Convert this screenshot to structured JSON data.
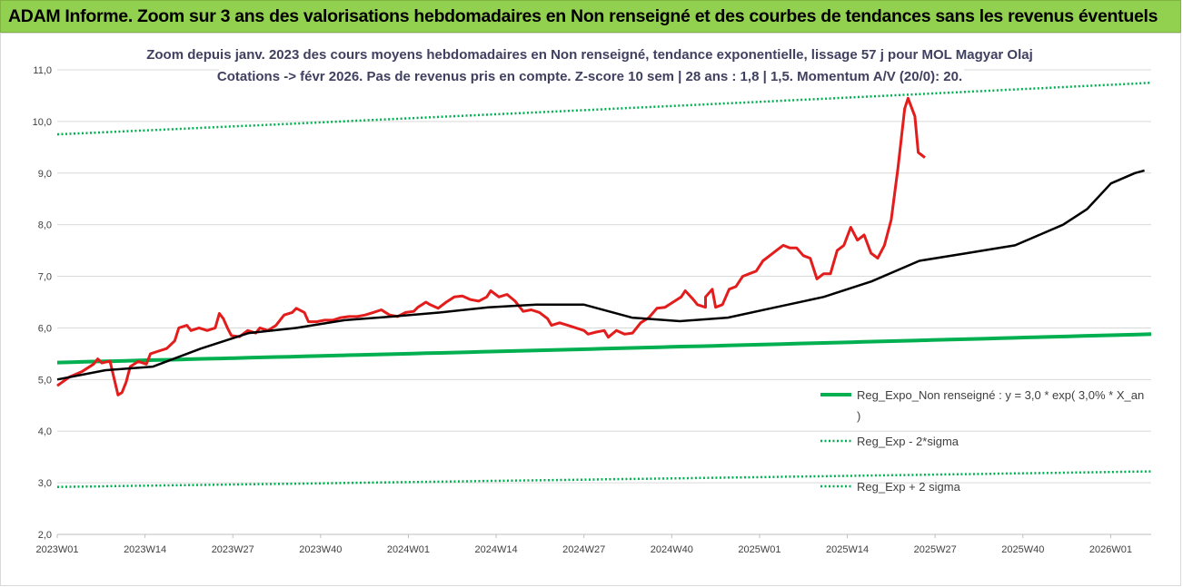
{
  "banner": {
    "title": "ADAM Informe. Zoom sur 3 ans des valorisations hebdomadaires en Non renseigné et des courbes de tendances sans les revenus éventuels"
  },
  "colors": {
    "banner": "#92d050",
    "price": "#e31c1c",
    "smooth": "#000000",
    "regression": "#00b050",
    "sigma": "#00b050",
    "grid": "#d9d9d9"
  },
  "chart_data": {
    "type": "line",
    "title_lines": [
      "Zoom depuis janv. 2023 des cours moyens hebdomadaires en Non renseigné, tendance exponentielle, lissage 57 j pour MOL Magyar Olaj",
      "Cotations -> févr 2026. Pas de revenus pris en compte. Z-score 10 sem | 28 ans : 1,8 | 1,5. Momentum A/V (20/0): 20."
    ],
    "x_tick_labels": [
      "2023W01",
      "2023W14",
      "2023W27",
      "2023W40",
      "2024W01",
      "2024W14",
      "2024W27",
      "2024W40",
      "2025W01",
      "2025W14",
      "2025W27",
      "2025W40",
      "2026W01"
    ],
    "y_tick_labels": [
      "2,0",
      "3,0",
      "4,0",
      "5,0",
      "6,0",
      "7,0",
      "8,0",
      "9,0",
      "10,0",
      "11,0"
    ],
    "ylim": [
      2,
      11
    ],
    "week_count": 162,
    "series": [
      {
        "name": "Cours moyen hebdomadaire",
        "style": "solid-thick-red",
        "in_legend": false,
        "points": [
          [
            0,
            4.88
          ],
          [
            3,
            5.05
          ],
          [
            6,
            5.15
          ],
          [
            9,
            5.3
          ],
          [
            10,
            5.4
          ],
          [
            11,
            5.32
          ],
          [
            13,
            5.36
          ],
          [
            15,
            4.7
          ],
          [
            16,
            4.75
          ],
          [
            17,
            4.95
          ],
          [
            18,
            5.25
          ],
          [
            20,
            5.35
          ],
          [
            22,
            5.3
          ],
          [
            23,
            5.5
          ],
          [
            25,
            5.55
          ],
          [
            27,
            5.6
          ],
          [
            29,
            5.75
          ],
          [
            30,
            6.0
          ],
          [
            32,
            6.05
          ],
          [
            33,
            5.95
          ],
          [
            35,
            6.0
          ],
          [
            37,
            5.95
          ],
          [
            39,
            6.0
          ],
          [
            40,
            6.28
          ],
          [
            41,
            6.18
          ],
          [
            42,
            6.0
          ],
          [
            43,
            5.85
          ],
          [
            45,
            5.83
          ],
          [
            47,
            5.95
          ],
          [
            49,
            5.9
          ],
          [
            50,
            6.0
          ],
          [
            52,
            5.95
          ],
          [
            54,
            6.05
          ],
          [
            56,
            6.25
          ],
          [
            58,
            6.3
          ],
          [
            59,
            6.38
          ],
          [
            61,
            6.3
          ],
          [
            62,
            6.12
          ],
          [
            64,
            6.12
          ],
          [
            66,
            6.15
          ],
          [
            68,
            6.15
          ],
          [
            70,
            6.2
          ],
          [
            72,
            6.22
          ],
          [
            74,
            6.22
          ],
          [
            76,
            6.25
          ],
          [
            78,
            6.3
          ],
          [
            80,
            6.35
          ],
          [
            82,
            6.25
          ],
          [
            84,
            6.22
          ],
          [
            86,
            6.3
          ],
          [
            88,
            6.32
          ],
          [
            89,
            6.4
          ],
          [
            91,
            6.5
          ],
          [
            92,
            6.45
          ],
          [
            94,
            6.38
          ],
          [
            96,
            6.5
          ],
          [
            98,
            6.6
          ],
          [
            100,
            6.62
          ],
          [
            102,
            6.55
          ],
          [
            104,
            6.52
          ],
          [
            106,
            6.6
          ],
          [
            107,
            6.72
          ],
          [
            109,
            6.6
          ],
          [
            111,
            6.65
          ],
          [
            113,
            6.52
          ],
          [
            115,
            6.32
          ],
          [
            117,
            6.35
          ],
          [
            119,
            6.3
          ],
          [
            121,
            6.18
          ],
          [
            122,
            6.05
          ],
          [
            124,
            6.1
          ],
          [
            126,
            6.05
          ],
          [
            128,
            6.0
          ],
          [
            130,
            5.95
          ],
          [
            131,
            5.88
          ],
          [
            133,
            5.92
          ],
          [
            135,
            5.95
          ],
          [
            136,
            5.82
          ],
          [
            138,
            5.95
          ],
          [
            140,
            5.88
          ],
          [
            142,
            5.9
          ],
          [
            144,
            6.1
          ],
          [
            146,
            6.2
          ],
          [
            148,
            6.38
          ],
          [
            150,
            6.4
          ],
          [
            152,
            6.5
          ],
          [
            154,
            6.6
          ],
          [
            155,
            6.72
          ],
          [
            157,
            6.55
          ],
          [
            158,
            6.45
          ],
          [
            160,
            6.4
          ]
        ],
        "points_tail": [
          [
            0,
            6.6
          ],
          [
            2,
            6.75
          ],
          [
            3,
            6.4
          ],
          [
            5,
            6.45
          ],
          [
            7,
            6.75
          ],
          [
            9,
            6.8
          ],
          [
            11,
            7.0
          ],
          [
            13,
            7.05
          ],
          [
            15,
            7.1
          ],
          [
            17,
            7.3
          ],
          [
            19,
            7.4
          ],
          [
            21,
            7.5
          ],
          [
            23,
            7.6
          ],
          [
            25,
            7.55
          ],
          [
            27,
            7.55
          ],
          [
            29,
            7.4
          ],
          [
            31,
            7.35
          ],
          [
            33,
            6.95
          ],
          [
            35,
            7.05
          ],
          [
            37,
            7.05
          ],
          [
            39,
            7.5
          ],
          [
            41,
            7.6
          ],
          [
            43,
            7.95
          ],
          [
            45,
            7.7
          ],
          [
            47,
            7.8
          ],
          [
            49,
            7.45
          ],
          [
            51,
            7.35
          ],
          [
            53,
            7.6
          ],
          [
            55,
            8.1
          ],
          [
            57,
            9.1
          ],
          [
            59,
            10.25
          ],
          [
            60,
            10.45
          ],
          [
            62,
            10.1
          ],
          [
            63,
            9.4
          ],
          [
            65,
            9.3
          ]
        ]
      },
      {
        "name": "Lissage 57 j",
        "style": "solid-black",
        "in_legend": false,
        "points": [
          [
            0,
            5.0
          ],
          [
            10,
            5.18
          ],
          [
            20,
            5.25
          ],
          [
            30,
            5.6
          ],
          [
            40,
            5.9
          ],
          [
            50,
            6.0
          ],
          [
            60,
            6.15
          ],
          [
            70,
            6.22
          ],
          [
            80,
            6.3
          ],
          [
            90,
            6.4
          ],
          [
            100,
            6.45
          ],
          [
            110,
            6.45
          ],
          [
            120,
            6.2
          ],
          [
            130,
            6.13
          ],
          [
            140,
            6.2
          ],
          [
            150,
            6.4
          ],
          [
            160,
            6.6
          ],
          [
            170,
            6.9
          ],
          [
            180,
            7.3
          ],
          [
            190,
            7.45
          ],
          [
            200,
            7.6
          ],
          [
            210,
            8.0
          ],
          [
            215,
            8.3
          ],
          [
            220,
            8.8
          ],
          [
            225,
            9.0
          ],
          [
            227,
            9.05
          ]
        ]
      },
      {
        "name": "Reg_Expo_Non renseigné : y = 3,0 * exp( 3,0% *  X_an )",
        "style": "solid-thick-green",
        "in_legend": true,
        "start": 5.33,
        "end": 5.88
      },
      {
        "name": "Reg_Exp - 2*sigma",
        "style": "dotted-green",
        "in_legend": true,
        "start": 2.92,
        "end": 3.22
      },
      {
        "name": "Reg_Exp + 2 sigma",
        "style": "dotted-green",
        "in_legend": true,
        "start": 9.75,
        "end": 10.75
      }
    ]
  }
}
